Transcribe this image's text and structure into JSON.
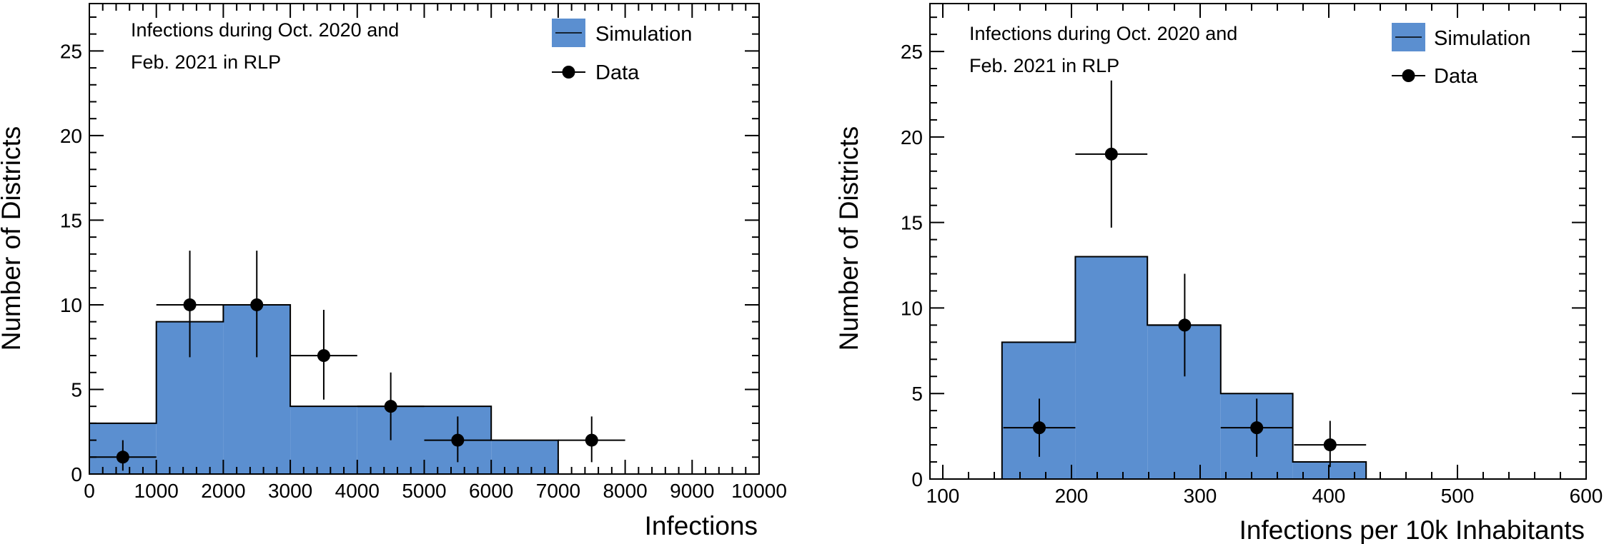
{
  "chart_data": [
    {
      "type": "bar",
      "subtype": "histogram-with-data-points",
      "annotation": [
        "Infections during Oct. 2020 and",
        "Feb. 2021 in RLP"
      ],
      "xlabel": "Infections",
      "ylabel": "Number of Districts",
      "xlim": [
        0,
        10000
      ],
      "ylim": [
        0,
        27.8
      ],
      "xticks": [
        0,
        1000,
        2000,
        3000,
        4000,
        5000,
        6000,
        7000,
        8000,
        9000,
        10000
      ],
      "xtick_labels": [
        "0",
        "1000",
        "2000",
        "3000",
        "4000",
        "5000",
        "6000",
        "7000",
        "8000",
        "9000",
        "10000"
      ],
      "yticks": [
        0,
        5,
        10,
        15,
        20,
        25
      ],
      "ytick_labels": [
        "0",
        "5",
        "10",
        "15",
        "20",
        "25"
      ],
      "legend": {
        "position": "top-right",
        "entries": [
          "Simulation",
          "Data"
        ]
      },
      "series": [
        {
          "name": "Simulation",
          "kind": "histogram",
          "color": "#5b8fd0",
          "edge_color": "#000000",
          "bin_edges": [
            0,
            1000,
            2000,
            3000,
            4000,
            5000,
            6000,
            7000
          ],
          "values": [
            3,
            9,
            10,
            4,
            4,
            4,
            2
          ]
        },
        {
          "name": "Data",
          "kind": "points-with-errors",
          "color": "#000000",
          "points": [
            {
              "x": 500,
              "y": 1,
              "xerr": 500,
              "ylo": 0.2,
              "yhi": 2.0
            },
            {
              "x": 1500,
              "y": 10,
              "xerr": 500,
              "ylo": 6.9,
              "yhi": 13.2
            },
            {
              "x": 2500,
              "y": 10,
              "xerr": 500,
              "ylo": 6.9,
              "yhi": 13.2
            },
            {
              "x": 3500,
              "y": 7,
              "xerr": 500,
              "ylo": 4.4,
              "yhi": 9.7
            },
            {
              "x": 4500,
              "y": 4,
              "xerr": 500,
              "ylo": 2.0,
              "yhi": 6.0
            },
            {
              "x": 5500,
              "y": 2,
              "xerr": 500,
              "ylo": 0.7,
              "yhi": 3.4
            },
            {
              "x": 7500,
              "y": 2,
              "xerr": 500,
              "ylo": 0.7,
              "yhi": 3.4
            }
          ]
        }
      ]
    },
    {
      "type": "bar",
      "subtype": "histogram-with-data-points",
      "annotation": [
        "Infections during Oct. 2020 and",
        "Feb. 2021 in RLP"
      ],
      "xlabel": "Infections per 10k Inhabitants",
      "ylabel": "Number of Districts",
      "xlim": [
        90,
        600
      ],
      "ylim": [
        0,
        27.8
      ],
      "xticks": [
        100,
        200,
        300,
        400,
        500,
        600
      ],
      "xtick_labels": [
        "100",
        "200",
        "300",
        "400",
        "500",
        "600"
      ],
      "yticks": [
        0,
        5,
        10,
        15,
        20,
        25
      ],
      "ytick_labels": [
        "0",
        "5",
        "10",
        "15",
        "20",
        "25"
      ],
      "legend": {
        "position": "top-right",
        "entries": [
          "Simulation",
          "Data"
        ]
      },
      "series": [
        {
          "name": "Simulation",
          "kind": "histogram",
          "color": "#5b8fd0",
          "edge_color": "#000000",
          "bin_edges": [
            146,
            203,
            259,
            316,
            372,
            429
          ],
          "values": [
            8,
            13,
            9,
            5,
            1
          ]
        },
        {
          "name": "Data",
          "kind": "points-with-errors",
          "color": "#000000",
          "points": [
            {
              "x": 175,
              "y": 3,
              "xerr": 28,
              "ylo": 1.3,
              "yhi": 4.7
            },
            {
              "x": 231,
              "y": 19,
              "xerr": 28,
              "ylo": 14.7,
              "yhi": 23.3
            },
            {
              "x": 288,
              "y": 9,
              "xerr": 28,
              "ylo": 6.0,
              "yhi": 12.0
            },
            {
              "x": 344,
              "y": 3,
              "xerr": 28,
              "ylo": 1.3,
              "yhi": 4.7
            },
            {
              "x": 401,
              "y": 2,
              "xerr": 28,
              "ylo": 0.7,
              "yhi": 3.4
            }
          ]
        }
      ]
    }
  ]
}
